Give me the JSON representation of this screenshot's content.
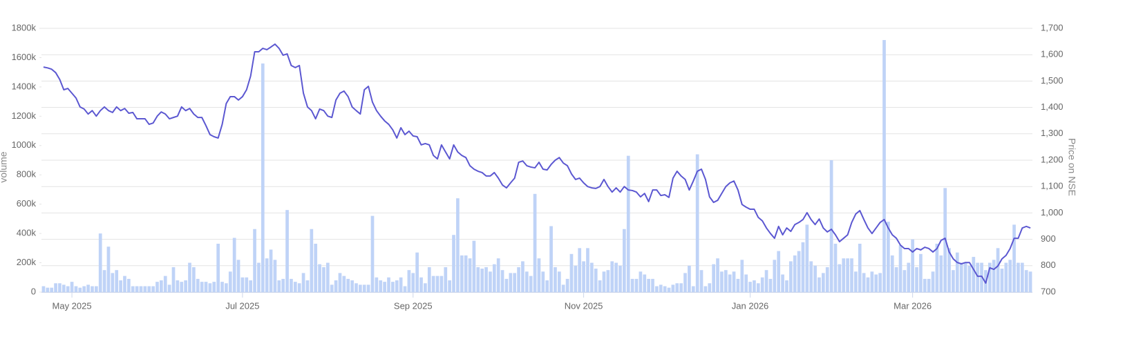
{
  "chart_data": {
    "type": "combo",
    "ylabel": "volume",
    "y2label": "Price on NSE",
    "categories": [
      null,
      null,
      null,
      null,
      null,
      null,
      null,
      "May 2025",
      null,
      null,
      null,
      null,
      null,
      null,
      null,
      null,
      null,
      null,
      null,
      null,
      null,
      null,
      null,
      null,
      null,
      null,
      null,
      null,
      null,
      null,
      null,
      null,
      null,
      null,
      null,
      null,
      null,
      null,
      null,
      null,
      null,
      null,
      null,
      null,
      null,
      null,
      null,
      null,
      null,
      "Jul 2025",
      null,
      null,
      null,
      null,
      null,
      null,
      null,
      null,
      null,
      null,
      null,
      null,
      null,
      null,
      null,
      null,
      null,
      null,
      null,
      null,
      null,
      null,
      null,
      null,
      null,
      null,
      null,
      null,
      null,
      null,
      null,
      null,
      null,
      null,
      null,
      null,
      null,
      null,
      null,
      null,
      null,
      "Sep 2025",
      null,
      null,
      null,
      null,
      null,
      null,
      null,
      null,
      null,
      null,
      null,
      null,
      null,
      null,
      null,
      null,
      null,
      null,
      null,
      null,
      null,
      null,
      null,
      null,
      null,
      null,
      null,
      null,
      null,
      null,
      null,
      null,
      null,
      null,
      null,
      null,
      null,
      null,
      null,
      null,
      null,
      "Nov 2025",
      null,
      null,
      null,
      null,
      null,
      null,
      null,
      null,
      null,
      null,
      null,
      null,
      null,
      null,
      null,
      null,
      null,
      null,
      null,
      null,
      null,
      null,
      null,
      null,
      null,
      null,
      null,
      null,
      null,
      null,
      null,
      null,
      null,
      null,
      null,
      null,
      null,
      null,
      null,
      null,
      "Jan 2026",
      null,
      null,
      null,
      null,
      null,
      null,
      null,
      null,
      null,
      null,
      null,
      null,
      null,
      null,
      null,
      null,
      null,
      null,
      null,
      null,
      null,
      null,
      null,
      null,
      null,
      null,
      null,
      null,
      null,
      null,
      null,
      null,
      null,
      null,
      null,
      null,
      null,
      null,
      null,
      "Mar 2026",
      null,
      null,
      null,
      null,
      null,
      null,
      null,
      null,
      null,
      null,
      null,
      null,
      null,
      null,
      null,
      null,
      null,
      null,
      null,
      null,
      null,
      null,
      null,
      null,
      null,
      null,
      null,
      null,
      null
    ],
    "series": [
      {
        "type": "bar",
        "color": "#bfd3f7",
        "values": [
          40000,
          30000,
          30000,
          60000,
          60000,
          50000,
          40000,
          70000,
          40000,
          30000,
          40000,
          50000,
          40000,
          40000,
          400000,
          150000,
          310000,
          130000,
          150000,
          80000,
          110000,
          90000,
          40000,
          40000,
          40000,
          40000,
          40000,
          40000,
          70000,
          80000,
          110000,
          50000,
          170000,
          80000,
          70000,
          80000,
          200000,
          170000,
          90000,
          70000,
          70000,
          60000,
          70000,
          330000,
          70000,
          60000,
          140000,
          370000,
          220000,
          100000,
          100000,
          80000,
          430000,
          200000,
          1560000,
          230000,
          290000,
          220000,
          80000,
          90000,
          560000,
          90000,
          70000,
          60000,
          130000,
          80000,
          430000,
          330000,
          190000,
          170000,
          200000,
          50000,
          80000,
          130000,
          110000,
          90000,
          80000,
          60000,
          50000,
          50000,
          50000,
          520000,
          100000,
          80000,
          70000,
          100000,
          70000,
          80000,
          100000,
          40000,
          150000,
          130000,
          270000,
          100000,
          60000,
          170000,
          110000,
          110000,
          110000,
          170000,
          80000,
          390000,
          640000,
          250000,
          250000,
          230000,
          350000,
          170000,
          160000,
          170000,
          140000,
          190000,
          230000,
          150000,
          90000,
          130000,
          130000,
          170000,
          210000,
          140000,
          110000,
          670000,
          230000,
          140000,
          80000,
          450000,
          170000,
          140000,
          50000,
          90000,
          260000,
          180000,
          300000,
          210000,
          300000,
          200000,
          160000,
          80000,
          140000,
          150000,
          210000,
          200000,
          180000,
          430000,
          930000,
          90000,
          90000,
          140000,
          120000,
          90000,
          90000,
          40000,
          50000,
          40000,
          30000,
          50000,
          60000,
          60000,
          130000,
          180000,
          40000,
          940000,
          150000,
          40000,
          60000,
          190000,
          230000,
          140000,
          150000,
          120000,
          140000,
          90000,
          220000,
          120000,
          70000,
          80000,
          60000,
          100000,
          150000,
          90000,
          220000,
          280000,
          120000,
          80000,
          210000,
          250000,
          280000,
          340000,
          460000,
          210000,
          180000,
          100000,
          130000,
          170000,
          900000,
          330000,
          190000,
          230000,
          230000,
          230000,
          140000,
          330000,
          130000,
          100000,
          140000,
          120000,
          130000,
          1720000,
          480000,
          250000,
          170000,
          320000,
          150000,
          200000,
          360000,
          170000,
          260000,
          90000,
          90000,
          140000,
          330000,
          250000,
          710000,
          300000,
          150000,
          270000,
          200000,
          200000,
          180000,
          240000,
          200000,
          200000,
          150000,
          200000,
          220000,
          300000,
          160000,
          200000,
          220000,
          460000,
          200000,
          200000,
          150000,
          140000
        ]
      },
      {
        "type": "line",
        "axis": "y2",
        "color": "#5b57d1",
        "values": [
          1553,
          1550,
          1545,
          1532,
          1506,
          1467,
          1472,
          1454,
          1436,
          1402,
          1394,
          1375,
          1388,
          1367,
          1388,
          1402,
          1388,
          1381,
          1402,
          1388,
          1396,
          1378,
          1381,
          1357,
          1357,
          1357,
          1336,
          1341,
          1367,
          1383,
          1375,
          1357,
          1362,
          1367,
          1402,
          1388,
          1396,
          1375,
          1362,
          1362,
          1331,
          1297,
          1289,
          1284,
          1336,
          1415,
          1441,
          1441,
          1428,
          1441,
          1467,
          1519,
          1611,
          1611,
          1624,
          1619,
          1629,
          1640,
          1624,
          1598,
          1603,
          1559,
          1551,
          1559,
          1454,
          1402,
          1388,
          1357,
          1394,
          1388,
          1367,
          1362,
          1428,
          1454,
          1462,
          1441,
          1402,
          1388,
          1375,
          1467,
          1480,
          1420,
          1388,
          1367,
          1349,
          1336,
          1315,
          1284,
          1323,
          1297,
          1310,
          1292,
          1289,
          1258,
          1263,
          1258,
          1218,
          1205,
          1258,
          1231,
          1205,
          1258,
          1231,
          1218,
          1210,
          1179,
          1166,
          1158,
          1153,
          1140,
          1140,
          1153,
          1132,
          1106,
          1095,
          1114,
          1132,
          1192,
          1197,
          1179,
          1174,
          1171,
          1192,
          1166,
          1163,
          1184,
          1200,
          1210,
          1189,
          1179,
          1148,
          1127,
          1132,
          1114,
          1100,
          1095,
          1093,
          1100,
          1127,
          1100,
          1079,
          1095,
          1079,
          1100,
          1087,
          1085,
          1079,
          1061,
          1074,
          1043,
          1087,
          1087,
          1066,
          1069,
          1059,
          1132,
          1158,
          1140,
          1127,
          1087,
          1121,
          1158,
          1166,
          1127,
          1061,
          1040,
          1048,
          1074,
          1100,
          1114,
          1121,
          1087,
          1032,
          1022,
          1014,
          1014,
          983,
          970,
          943,
          922,
          904,
          949,
          917,
          943,
          930,
          956,
          964,
          975,
          1001,
          975,
          956,
          977,
          943,
          928,
          938,
          917,
          891,
          904,
          917,
          964,
          996,
          1009,
          975,
          943,
          922,
          943,
          964,
          975,
          943,
          917,
          904,
          878,
          865,
          865,
          852,
          865,
          860,
          870,
          865,
          852,
          865,
          896,
          904,
          852,
          826,
          812,
          807,
          812,
          812,
          786,
          760,
          760,
          734,
          792,
          786,
          799,
          826,
          839,
          865,
          904,
          904,
          943,
          949,
          943
        ]
      }
    ],
    "ylim": [
      0,
      1800000
    ],
    "yticks": [
      0,
      {
        "value": 200000,
        "label": "200k"
      },
      {
        "value": 400000,
        "label": "400k"
      },
      {
        "value": 600000,
        "label": "600k"
      },
      {
        "value": 800000,
        "label": "800k"
      },
      {
        "value": 1000000,
        "label": "1000k"
      },
      {
        "value": 1200000,
        "label": "1200k"
      },
      {
        "value": 1400000,
        "label": "1400k"
      },
      {
        "value": 1600000,
        "label": "1600k"
      },
      {
        "value": 1800000,
        "label": "1800k"
      }
    ],
    "y2lim": [
      700,
      1700
    ],
    "y2ticks": [
      700,
      800,
      900,
      {
        "value": 1000,
        "label": "1,000"
      },
      {
        "value": 1100,
        "label": "1,100"
      },
      {
        "value": 1200,
        "label": "1,200"
      },
      {
        "value": 1300,
        "label": "1,300"
      },
      {
        "value": 1400,
        "label": "1,400"
      },
      {
        "value": 1500,
        "label": "1,500"
      },
      {
        "value": 1600,
        "label": "1,600"
      },
      {
        "value": 1700,
        "label": "1,700"
      }
    ],
    "grid": true
  }
}
